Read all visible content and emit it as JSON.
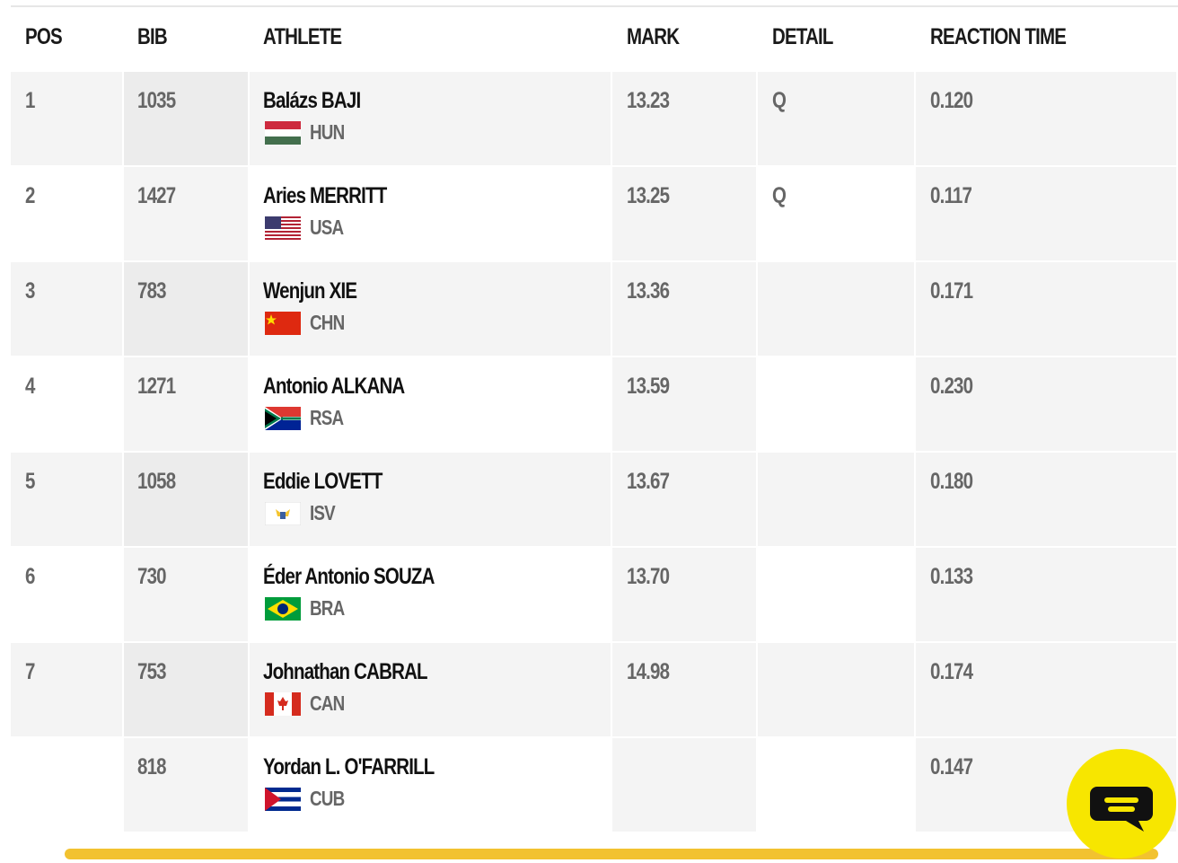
{
  "table": {
    "header": [
      "POS",
      "BIB",
      "ATHLETE",
      "MARK",
      "DETAIL",
      "REACTION TIME"
    ],
    "rows": [
      {
        "pos": "1",
        "bib": "1035",
        "athlete": "Balázs BAJI",
        "country": "HUN",
        "mark": "13.23",
        "detail": "Q",
        "reaction": "0.120"
      },
      {
        "pos": "2",
        "bib": "1427",
        "athlete": "Aries MERRITT",
        "country": "USA",
        "mark": "13.25",
        "detail": "Q",
        "reaction": "0.117"
      },
      {
        "pos": "3",
        "bib": "783",
        "athlete": "Wenjun XIE",
        "country": "CHN",
        "mark": "13.36",
        "reaction": "0.171"
      },
      {
        "pos": "4",
        "bib": "1271",
        "athlete": "Antonio ALKANA",
        "country": "RSA",
        "mark": "13.59",
        "reaction": "0.230"
      },
      {
        "pos": "5",
        "bib": "1058",
        "athlete": "Eddie LOVETT",
        "country": "ISV",
        "mark": "13.67",
        "reaction": "0.180"
      },
      {
        "pos": "6",
        "bib": "730",
        "athlete": "Éder Antonio SOUZA",
        "country": "BRA",
        "mark": "13.70",
        "reaction": "0.133"
      },
      {
        "pos": "7",
        "bib": "753",
        "athlete": "Johnathan CABRAL",
        "country": "CAN",
        "mark": "14.98",
        "reaction": "0.174"
      },
      {
        "bib": "818",
        "athlete": "Yordan L. O'FARRILL",
        "country": "CUB",
        "reaction": "0.147"
      }
    ]
  }
}
